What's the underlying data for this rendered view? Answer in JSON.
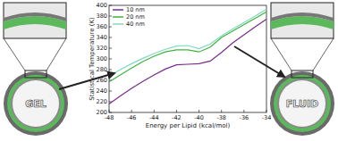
{
  "chart_data": {
    "type": "line",
    "x_label": "Energy per Lipid (kcal/mol)",
    "y_label": "Statistical Temperature (K)",
    "annotations": [
      "GEL",
      "FLUID"
    ],
    "x": [
      -48,
      -47,
      -46,
      -45,
      -44,
      -43,
      -42,
      -41,
      -40,
      -39,
      -38,
      -37,
      -36,
      -35,
      -34
    ],
    "series": [
      {
        "name": "10 nm",
        "color": "#7a2c8c",
        "values": [
          216,
          231,
          245,
          258,
          270,
          281,
          289,
          290,
          291,
          296,
          312,
          330,
          345,
          360,
          374
        ]
      },
      {
        "name": "20 nm",
        "color": "#3fb23f",
        "values": [
          257,
          270,
          283,
          295,
          305,
          313,
          317,
          317,
          313,
          322,
          340,
          352,
          364,
          376,
          388
        ]
      },
      {
        "name": "40 nm",
        "color": "#7fd9c0",
        "values": [
          268,
          280,
          291,
          301,
          310,
          318,
          324,
          325,
          319,
          328,
          343,
          356,
          368,
          380,
          393
        ]
      }
    ],
    "xlim": [
      -48,
      -34
    ],
    "xticks": [
      -48,
      -46,
      -44,
      -42,
      -40,
      -38,
      -36,
      -34
    ],
    "ylim": [
      200,
      400
    ],
    "yticks": [
      200,
      220,
      240,
      260,
      280,
      300,
      320,
      340,
      360,
      380,
      400
    ],
    "legend": "top-left",
    "grid": false
  }
}
